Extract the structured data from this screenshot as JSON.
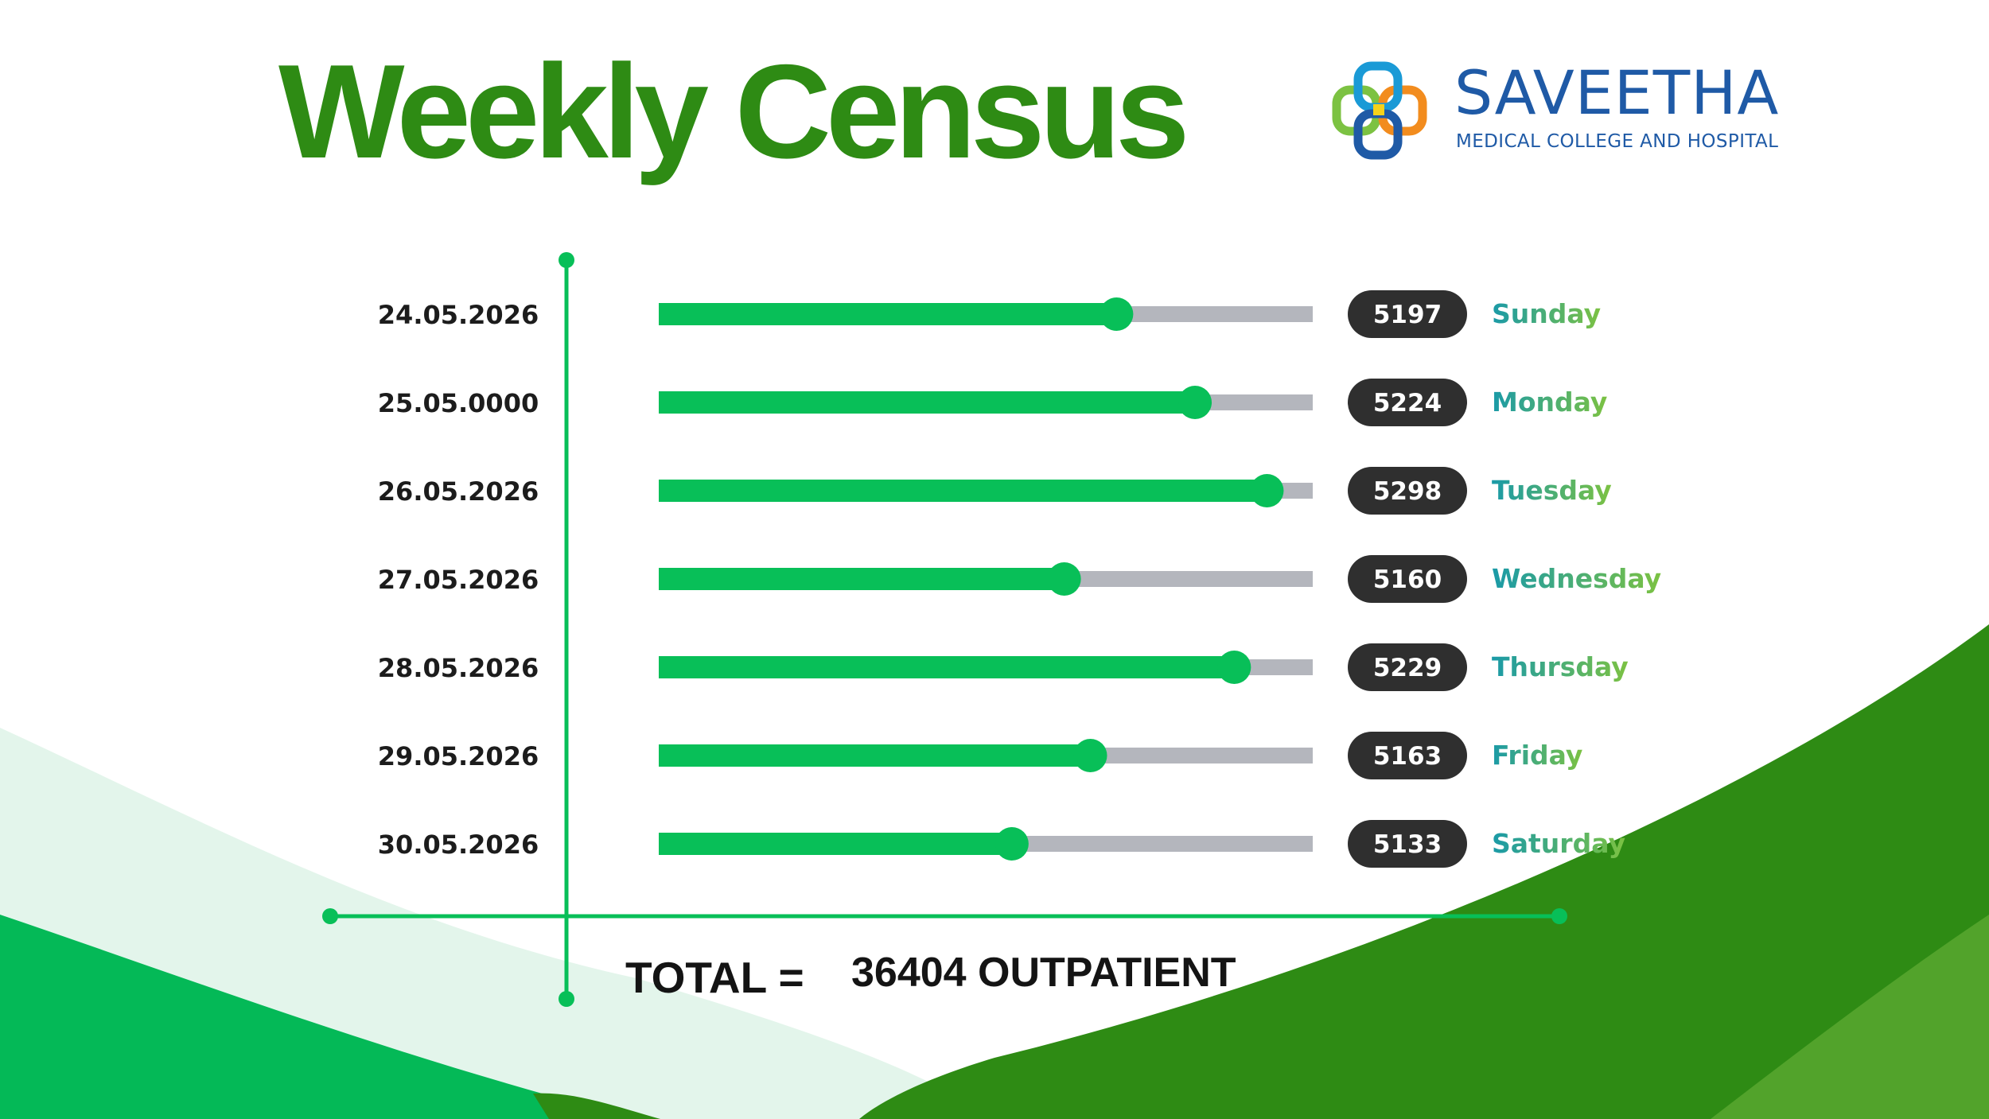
{
  "title": "Weekly Census",
  "brand": {
    "name": "SAVEETHA",
    "subtitle": "MEDICAL COLLEGE AND HOSPITAL",
    "logo_icon": "interlocking-rings-logo-icon"
  },
  "colors": {
    "title_green": "#2e8b14",
    "bar_fill": "#08bf58",
    "bar_track": "#b4b6bd",
    "pill_bg": "#2f2f2f",
    "axis_green": "#08bf58",
    "day_label_start": "#1a9aa8",
    "day_label_end": "#7cc242",
    "brand_blue": "#1f5aa6"
  },
  "chart_data": {
    "type": "bar",
    "orientation": "horizontal",
    "categories": [
      "24.05.2026",
      "25.05.0000",
      "26.05.2026",
      "27.05.2026",
      "28.05.2026",
      "29.05.2026",
      "30.05.2026"
    ],
    "days": [
      "Sunday",
      "Monday",
      "Tuesday",
      "Wednesday",
      "Thursday",
      "Friday",
      "Saturday"
    ],
    "values": [
      5197,
      5224,
      5298,
      5160,
      5229,
      5163,
      5133
    ],
    "value_labels": [
      "5197",
      "5224",
      "5298",
      "5160",
      "5229",
      "5163",
      "5133"
    ],
    "fill_fraction": [
      0.7,
      0.82,
      0.93,
      0.62,
      0.88,
      0.66,
      0.54
    ],
    "grid": false,
    "legend": "none"
  },
  "total": {
    "label": "TOTAL =",
    "value": "36404 OUTPATIENT"
  }
}
